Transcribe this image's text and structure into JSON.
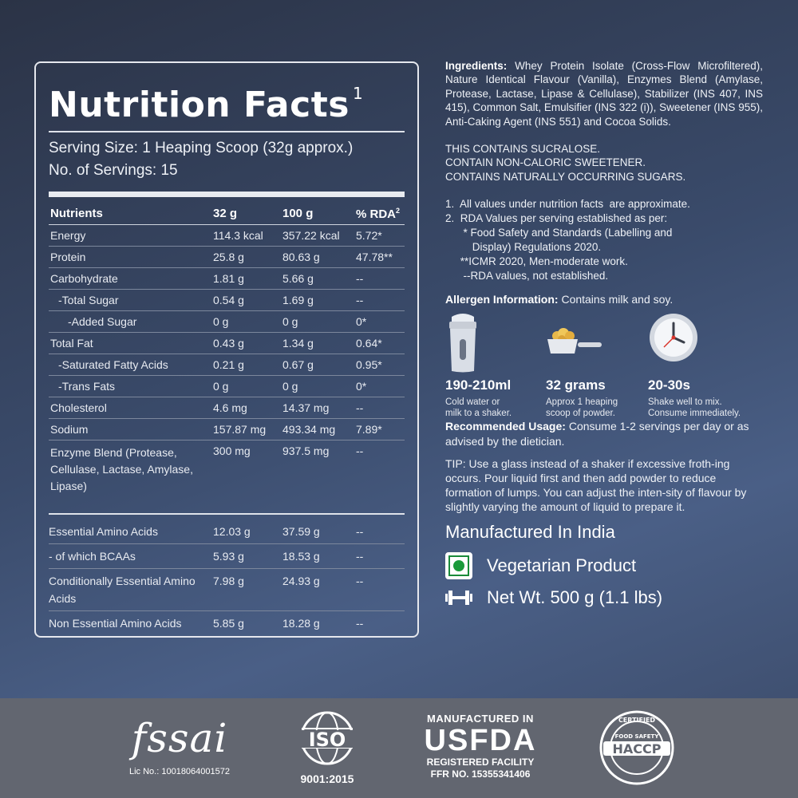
{
  "nutrition": {
    "title": "Nutrition Facts",
    "title_sup": "1",
    "serving_size": "Serving Size: 1 Heaping Scoop (32g approx.)",
    "servings": "No. of Servings: 15",
    "headers": [
      "Nutrients",
      "32 g",
      "100 g",
      "% RDA"
    ],
    "header_sup": "2",
    "rows": [
      {
        "name": "Energy",
        "v32": "114.3 kcal",
        "v100": "357.22 kcal",
        "rda": "5.72*"
      },
      {
        "name": "Protein",
        "v32": "25.8 g",
        "v100": "80.63 g",
        "rda": "47.78**"
      },
      {
        "name": "Carbohydrate",
        "v32": "1.81 g",
        "v100": "5.66 g",
        "rda": "--"
      },
      {
        "name": "-Total Sugar",
        "v32": "0.54 g",
        "v100": "1.69 g",
        "rda": "--"
      },
      {
        "name": "-Added Sugar",
        "v32": "0 g",
        "v100": "0 g",
        "rda": "0*"
      },
      {
        "name": "Total Fat",
        "v32": "0.43 g",
        "v100": "1.34 g",
        "rda": "0.64*"
      },
      {
        "name": "-Saturated Fatty Acids",
        "v32": "0.21 g",
        "v100": "0.67 g",
        "rda": "0.95*"
      },
      {
        "name": "-Trans Fats",
        "v32": "0 g",
        "v100": "0 g",
        "rda": "0*"
      },
      {
        "name": "Cholesterol",
        "v32": "4.6 mg",
        "v100": "14.37 mg",
        "rda": "--"
      },
      {
        "name": "Sodium",
        "v32": "157.87 mg",
        "v100": "493.34 mg",
        "rda": "7.89*"
      },
      {
        "name": "Enzyme Blend (Protease, Cellulase, Lactase, Amylase, Lipase)",
        "v32": "300 mg",
        "v100": "937.5 mg",
        "rda": "--"
      }
    ],
    "amino_rows": [
      {
        "name": "Essential Amino Acids",
        "v32": "12.03 g",
        "v100": "37.59 g",
        "rda": "--"
      },
      {
        "name": "- of which BCAAs",
        "v32": "5.93 g",
        "v100": "18.53 g",
        "rda": "--"
      },
      {
        "name": "Conditionally Essential Amino Acids",
        "v32": "7.98 g",
        "v100": "24.93 g",
        "rda": "--"
      },
      {
        "name": "Non Essential Amino Acids",
        "v32": "5.85 g",
        "v100": "18.28 g",
        "rda": "--"
      }
    ]
  },
  "info": {
    "ingredients_label": "Ingredients:",
    "ingredients_text": "Whey Protein Isolate (Cross-Flow Microfiltered), Nature Identical Flavour (Vanilla), Enzymes Blend (Amylase, Protease, Lactase, Lipase & Cellulase), Stabilizer (INS 407, INS 415), Common Salt, Emulsifier (INS 322 (i)), Sweetener (INS 955), Anti-Caking Agent (INS 551) and Cocoa Solids.",
    "caps": [
      "THIS CONTAINS SUCRALOSE.",
      "CONTAIN NON-CALORIC SWEETENER.",
      "CONTAINS NATURALLY OCCURRING SUGARS."
    ],
    "notes": [
      "1.  All values under nutrition facts  are approximate.",
      "2.  RDA Values per serving established as per:",
      "      * Food Safety and Standards (Labelling and",
      "         Display) Regulations 2020.",
      "     **ICMR 2020, Men-moderate work.",
      "      --RDA values, not established."
    ],
    "allergen_label": "Allergen Information:",
    "allergen_text": "Contains milk and soy.",
    "icons": [
      {
        "icon": "shaker-icon",
        "big": "190-210ml",
        "small1": "Cold water or",
        "small2": "milk to a shaker."
      },
      {
        "icon": "scoop-icon",
        "big": "32 grams",
        "small1": "Approx 1 heaping",
        "small2": "scoop of powder."
      },
      {
        "icon": "clock-icon",
        "big": "20-30s",
        "small1": "Shake well to mix.",
        "small2": "Consume immediately."
      }
    ],
    "usage_label": "Recommended Usage:",
    "usage_text": "Consume 1-2 servings per day or as advised by the dietician.",
    "tip": "TIP: Use a glass instead of a shaker if excessive froth-ing occurs. Pour liquid first and then add powder to reduce formation of lumps. You can adjust the inten-sity of flavour by slightly varying the amount of liquid to prepare it.",
    "made_in": "Manufactured In India",
    "veg": "Vegetarian Product",
    "net_wt": "Net Wt. 500 g (1.1 lbs)"
  },
  "footer": {
    "fssai_word": "fssai",
    "fssai_lic": "Lic No.: 10018064001572",
    "iso_word": "ISO",
    "iso_num": "9001:2015",
    "usfda_top": "MANUFACTURED IN",
    "usfda_big": "USFDA",
    "usfda_line1": "REGISTERED FACILITY",
    "usfda_line2": "FFR NO. 15355341406",
    "haccp_word": "HACCP",
    "haccp_ring_top": "CERTIFIED",
    "haccp_ring_mid": "FOOD SAFETY"
  },
  "colors": {
    "veg_green": "#1a9a3a",
    "footer_bg": "#626670",
    "clock_hand_red": "#d9342b"
  }
}
